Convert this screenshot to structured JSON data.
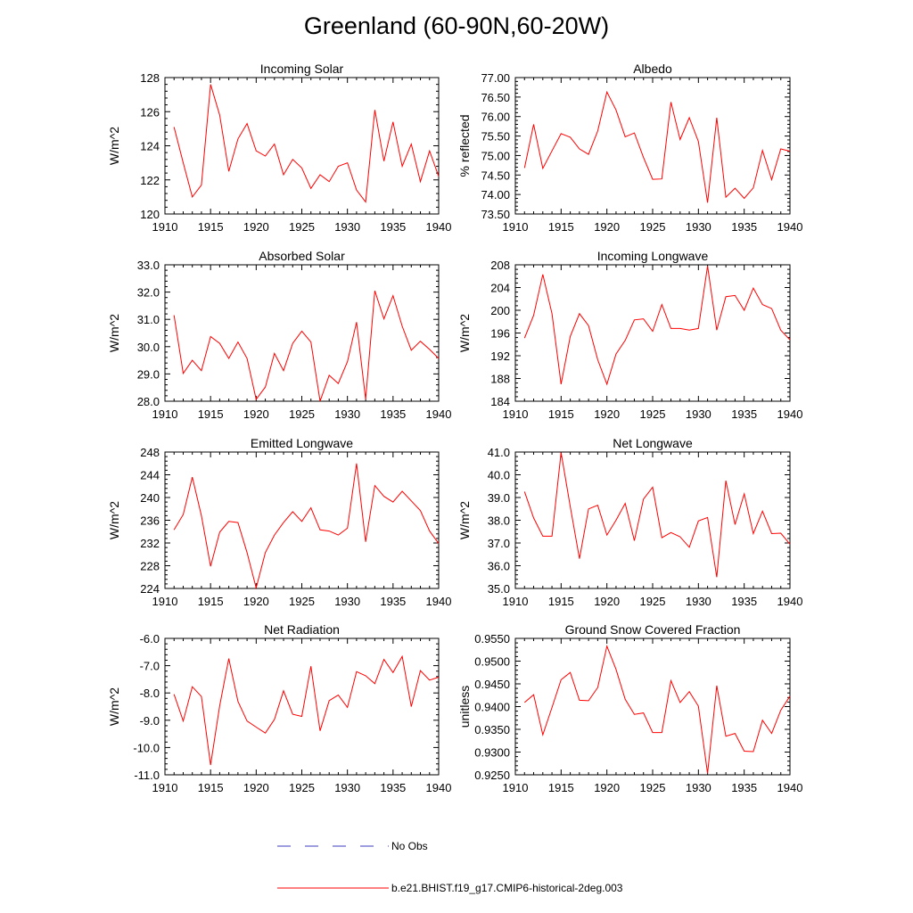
{
  "title": "Greenland (60-90N,60-20W)",
  "legend": [
    {
      "label": "No Obs",
      "color": "#3b3bbf",
      "style": "dashed"
    },
    {
      "label": "b.e21.BHIST.f19_g17.CMIP6-historical-2deg.003",
      "color": "#ff0000",
      "style": "solid"
    }
  ],
  "chart_data": [
    {
      "type": "line",
      "title": "Incoming Solar",
      "ylabel": "W/m^2",
      "xlim": [
        1910,
        1940
      ],
      "ylim": [
        120,
        128
      ],
      "xticks": [
        1910,
        1915,
        1920,
        1925,
        1930,
        1935,
        1940
      ],
      "yticks": [
        "120",
        "122",
        "124",
        "126",
        "128"
      ],
      "series": [
        {
          "color": "#ff0000",
          "x": [
            1911,
            1912,
            1913,
            1914,
            1915,
            1916,
            1917,
            1918,
            1919,
            1920,
            1921,
            1922,
            1923,
            1924,
            1925,
            1926,
            1927,
            1928,
            1929,
            1930,
            1931,
            1932,
            1933,
            1934,
            1935,
            1936,
            1937,
            1938,
            1939,
            1940
          ],
          "y": [
            125.1,
            123.0,
            121.0,
            121.7,
            127.6,
            125.8,
            122.5,
            124.4,
            125.3,
            123.7,
            123.4,
            124.1,
            122.3,
            123.2,
            122.7,
            121.5,
            122.3,
            121.9,
            122.8,
            123.0,
            121.4,
            120.7,
            126.1,
            123.1,
            125.4,
            122.8,
            124.1,
            121.9,
            123.7,
            122.2
          ]
        }
      ]
    },
    {
      "type": "line",
      "title": "Albedo",
      "ylabel": "% reflected",
      "xlim": [
        1910,
        1940
      ],
      "ylim": [
        73.5,
        77.0
      ],
      "xticks": [
        1910,
        1915,
        1920,
        1925,
        1930,
        1935,
        1940
      ],
      "yticks": [
        "73.50",
        "74.00",
        "74.50",
        "75.00",
        "75.50",
        "76.00",
        "76.50",
        "77.00"
      ],
      "series": [
        {
          "color": "#ff0000",
          "x": [
            1911,
            1912,
            1913,
            1914,
            1915,
            1916,
            1917,
            1918,
            1919,
            1920,
            1921,
            1922,
            1923,
            1924,
            1925,
            1926,
            1927,
            1928,
            1929,
            1930,
            1931,
            1932,
            1933,
            1934,
            1935,
            1936,
            1937,
            1938,
            1939,
            1940
          ],
          "y": [
            74.68,
            75.8,
            74.67,
            75.12,
            75.56,
            75.47,
            75.17,
            75.03,
            75.63,
            76.63,
            76.17,
            75.48,
            75.58,
            74.95,
            74.39,
            74.4,
            76.37,
            75.41,
            75.97,
            75.36,
            73.79,
            75.97,
            73.93,
            74.16,
            73.9,
            74.17,
            75.13,
            74.38,
            75.17,
            75.11
          ]
        }
      ]
    },
    {
      "type": "line",
      "title": "Absorbed Solar",
      "ylabel": "W/m^2",
      "xlim": [
        1910,
        1940
      ],
      "ylim": [
        28.0,
        33.0
      ],
      "xticks": [
        1910,
        1915,
        1920,
        1925,
        1930,
        1935,
        1940
      ],
      "yticks": [
        "28.0",
        "29.0",
        "30.0",
        "31.0",
        "32.0",
        "33.0"
      ],
      "series": [
        {
          "color": "#ff0000",
          "x": [
            1911,
            1912,
            1913,
            1914,
            1915,
            1916,
            1917,
            1918,
            1919,
            1920,
            1921,
            1922,
            1923,
            1924,
            1925,
            1926,
            1927,
            1928,
            1929,
            1930,
            1931,
            1932,
            1933,
            1934,
            1935,
            1936,
            1937,
            1938,
            1939,
            1940
          ],
          "y": [
            31.15,
            29.02,
            29.5,
            29.12,
            30.37,
            30.12,
            29.57,
            30.17,
            29.57,
            28.07,
            28.52,
            29.75,
            29.12,
            30.12,
            30.57,
            30.17,
            28.0,
            28.95,
            28.65,
            29.45,
            30.9,
            28.07,
            32.05,
            31.02,
            31.87,
            30.75,
            29.87,
            30.2,
            29.9,
            29.57
          ]
        }
      ]
    },
    {
      "type": "line",
      "title": "Incoming Longwave",
      "ylabel": "W/m^2",
      "xlim": [
        1910,
        1940
      ],
      "ylim": [
        184,
        208
      ],
      "xticks": [
        1910,
        1915,
        1920,
        1925,
        1930,
        1935,
        1940
      ],
      "yticks": [
        "184",
        "188",
        "192",
        "196",
        "200",
        "204",
        "208"
      ],
      "series": [
        {
          "color": "#ff0000",
          "x": [
            1911,
            1912,
            1913,
            1914,
            1915,
            1916,
            1917,
            1918,
            1919,
            1920,
            1921,
            1922,
            1923,
            1924,
            1925,
            1926,
            1927,
            1928,
            1929,
            1930,
            1931,
            1932,
            1933,
            1934,
            1935,
            1936,
            1937,
            1938,
            1939,
            1940
          ],
          "y": [
            195.1,
            199.1,
            206.3,
            199.4,
            187.0,
            195.4,
            199.4,
            197.3,
            191.3,
            187.0,
            192.3,
            194.7,
            198.3,
            198.5,
            196.3,
            201.0,
            196.8,
            196.8,
            196.5,
            196.8,
            207.8,
            196.5,
            202.4,
            202.6,
            200.0,
            203.9,
            201.0,
            200.3,
            196.5,
            194.8
          ]
        }
      ]
    },
    {
      "type": "line",
      "title": "Emitted Longwave",
      "ylabel": "W/m^2",
      "xlim": [
        1910,
        1940
      ],
      "ylim": [
        224,
        248
      ],
      "xticks": [
        1910,
        1915,
        1920,
        1925,
        1930,
        1935,
        1940
      ],
      "yticks": [
        "224",
        "228",
        "232",
        "236",
        "240",
        "244",
        "248"
      ],
      "series": [
        {
          "color": "#ff0000",
          "x": [
            1911,
            1912,
            1913,
            1914,
            1915,
            1916,
            1917,
            1918,
            1919,
            1920,
            1921,
            1922,
            1923,
            1924,
            1925,
            1926,
            1927,
            1928,
            1929,
            1930,
            1931,
            1932,
            1933,
            1934,
            1935,
            1936,
            1937,
            1938,
            1939,
            1940
          ],
          "y": [
            234.3,
            237.0,
            243.6,
            236.8,
            227.9,
            233.9,
            235.8,
            235.6,
            230.3,
            224.1,
            230.3,
            233.4,
            235.6,
            237.5,
            235.8,
            238.2,
            234.3,
            234.1,
            233.4,
            234.6,
            246.0,
            232.2,
            242.1,
            240.2,
            239.2,
            241.1,
            239.4,
            237.7,
            234.1,
            231.9
          ]
        }
      ]
    },
    {
      "type": "line",
      "title": "Net Longwave",
      "ylabel": "W/m^2",
      "xlim": [
        1910,
        1940
      ],
      "ylim": [
        35.0,
        41.0
      ],
      "xticks": [
        1910,
        1915,
        1920,
        1925,
        1930,
        1935,
        1940
      ],
      "yticks": [
        "35.0",
        "36.0",
        "37.0",
        "38.0",
        "39.0",
        "40.0",
        "41.0"
      ],
      "series": [
        {
          "color": "#ff0000",
          "x": [
            1911,
            1912,
            1913,
            1914,
            1915,
            1916,
            1917,
            1918,
            1919,
            1920,
            1921,
            1922,
            1923,
            1924,
            1925,
            1926,
            1927,
            1928,
            1929,
            1930,
            1931,
            1932,
            1933,
            1934,
            1935,
            1936,
            1937,
            1938,
            1939,
            1940
          ],
          "y": [
            39.26,
            38.1,
            37.3,
            37.3,
            40.98,
            38.6,
            36.31,
            38.5,
            38.66,
            37.35,
            38.0,
            38.74,
            37.1,
            38.93,
            39.45,
            37.23,
            37.46,
            37.27,
            36.81,
            37.97,
            38.12,
            35.5,
            39.74,
            37.81,
            39.16,
            37.41,
            38.4,
            37.41,
            37.43,
            36.95
          ]
        }
      ]
    },
    {
      "type": "line",
      "title": "Net Radiation",
      "ylabel": "W/m^2",
      "xlim": [
        1910,
        1940
      ],
      "ylim": [
        -11.0,
        -6.0
      ],
      "xticks": [
        1910,
        1915,
        1920,
        1925,
        1930,
        1935,
        1940
      ],
      "yticks": [
        "-11.0",
        "-10.0",
        "-9.0",
        "-8.0",
        "-7.0",
        "-6.0"
      ],
      "series": [
        {
          "color": "#ff0000",
          "x": [
            1911,
            1912,
            1913,
            1914,
            1915,
            1916,
            1917,
            1918,
            1919,
            1920,
            1921,
            1922,
            1923,
            1924,
            1925,
            1926,
            1927,
            1928,
            1929,
            1930,
            1931,
            1932,
            1933,
            1934,
            1935,
            1936,
            1937,
            1938,
            1939,
            1940
          ],
          "y": [
            -8.05,
            -9.03,
            -7.77,
            -8.13,
            -10.64,
            -8.47,
            -6.74,
            -8.31,
            -9.03,
            -9.25,
            -9.47,
            -8.97,
            -7.92,
            -8.78,
            -8.86,
            -7.02,
            -9.39,
            -8.28,
            -8.08,
            -8.53,
            -7.22,
            -7.37,
            -7.66,
            -6.77,
            -7.25,
            -6.66,
            -8.5,
            -7.18,
            -7.53,
            -7.42
          ]
        }
      ]
    },
    {
      "type": "line",
      "title": "Ground Snow Covered Fraction",
      "ylabel": "unitless",
      "xlim": [
        1910,
        1940
      ],
      "ylim": [
        0.925,
        0.955
      ],
      "xticks": [
        1910,
        1915,
        1920,
        1925,
        1930,
        1935,
        1940
      ],
      "yticks": [
        "0.9250",
        "0.9300",
        "0.9350",
        "0.9400",
        "0.9450",
        "0.9500",
        "0.9550"
      ],
      "series": [
        {
          "color": "#ff0000",
          "x": [
            1911,
            1912,
            1913,
            1914,
            1915,
            1916,
            1917,
            1918,
            1919,
            1920,
            1921,
            1922,
            1923,
            1924,
            1925,
            1926,
            1927,
            1928,
            1929,
            1930,
            1931,
            1932,
            1933,
            1934,
            1935,
            1936,
            1937,
            1938,
            1939,
            1940
          ],
          "y": [
            0.9409,
            0.9426,
            0.9338,
            0.9398,
            0.9459,
            0.9475,
            0.9414,
            0.9413,
            0.9442,
            0.9533,
            0.9482,
            0.9416,
            0.9383,
            0.9386,
            0.9343,
            0.9343,
            0.9457,
            0.9409,
            0.9433,
            0.9401,
            0.9253,
            0.9446,
            0.9335,
            0.9341,
            0.9302,
            0.9301,
            0.937,
            0.9341,
            0.9392,
            0.9423
          ]
        }
      ]
    }
  ]
}
